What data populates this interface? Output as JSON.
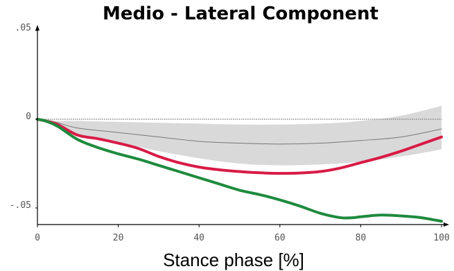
{
  "chart_data": {
    "type": "line",
    "title": "Medio - Lateral Component",
    "xlabel": "Stance phase [%]",
    "ylabel": "",
    "xlim": [
      0,
      100
    ],
    "ylim": [
      -0.06,
      0.05
    ],
    "x_ticks": [
      0,
      20,
      40,
      60,
      80,
      100
    ],
    "x_tick_labels": [
      "0",
      "20",
      "40",
      "60",
      "80",
      "100"
    ],
    "y_ticks": [
      0.05,
      0,
      -0.05
    ],
    "y_tick_labels": [
      ".05",
      "0",
      "-.05"
    ],
    "grid": false,
    "legend": "none",
    "reference_line": {
      "y": 0,
      "color": "#888888"
    },
    "band": {
      "color": "#d9d9d9",
      "x": [
        0,
        2,
        5,
        10,
        20,
        30,
        40,
        50,
        60,
        70,
        80,
        90,
        100
      ],
      "upper": [
        0,
        0,
        -0.001,
        -0.001,
        -0.0015,
        -0.002,
        -0.0025,
        -0.003,
        -0.003,
        -0.0025,
        -0.001,
        0.002,
        0.0075
      ],
      "lower": [
        0,
        -0.001,
        -0.004,
        -0.009,
        -0.013,
        -0.018,
        -0.022,
        -0.025,
        -0.026,
        -0.0255,
        -0.024,
        -0.021,
        -0.017
      ]
    },
    "series": [
      {
        "color": "#777777",
        "width": 1,
        "x": [
          0,
          2,
          5,
          10,
          20,
          30,
          40,
          50,
          60,
          70,
          80,
          90,
          100
        ],
        "values": [
          0,
          -0.0005,
          -0.002,
          -0.005,
          -0.0075,
          -0.01,
          -0.0125,
          -0.0135,
          -0.014,
          -0.0135,
          -0.012,
          -0.01,
          -0.0055
        ]
      },
      {
        "color": "#d81b45",
        "width": 4,
        "x": [
          0,
          2,
          5,
          10,
          15,
          20,
          25,
          30,
          35,
          40,
          45,
          50,
          55,
          60,
          65,
          70,
          75,
          80,
          85,
          90,
          95,
          100
        ],
        "values": [
          0,
          -0.001,
          -0.003,
          -0.009,
          -0.011,
          -0.0135,
          -0.0165,
          -0.021,
          -0.0245,
          -0.027,
          -0.0285,
          -0.0295,
          -0.0302,
          -0.0305,
          -0.0303,
          -0.0295,
          -0.0275,
          -0.0245,
          -0.0215,
          -0.018,
          -0.014,
          -0.01
        ]
      },
      {
        "color": "#1e8a3e",
        "width": 4,
        "x": [
          0,
          2,
          5,
          10,
          15,
          20,
          25,
          30,
          35,
          40,
          45,
          50,
          55,
          60,
          65,
          70,
          75,
          78,
          80,
          85,
          90,
          95,
          100
        ],
        "values": [
          0,
          -0.001,
          -0.004,
          -0.0115,
          -0.016,
          -0.0195,
          -0.0225,
          -0.026,
          -0.0295,
          -0.033,
          -0.0365,
          -0.04,
          -0.0425,
          -0.0455,
          -0.049,
          -0.053,
          -0.0555,
          -0.0555,
          -0.055,
          -0.054,
          -0.0545,
          -0.0555,
          -0.0575
        ]
      }
    ]
  }
}
